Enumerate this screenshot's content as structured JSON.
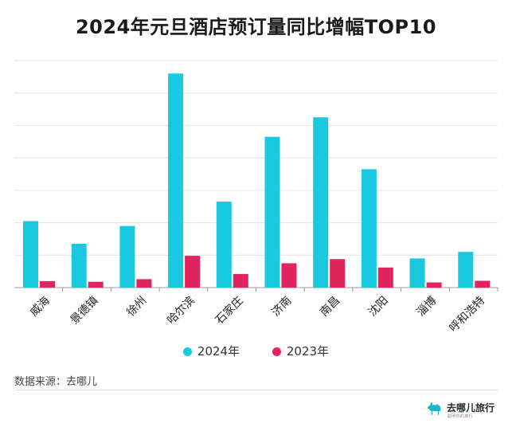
{
  "chart_data": {
    "type": "bar",
    "title": "2024年元旦酒店预订量同比增幅TOP10",
    "categories": [
      "威海",
      "景德镇",
      "徐州",
      "哈尔滨",
      "石家庄",
      "济南",
      "南昌",
      "沈阳",
      "淄博",
      "呼和浩特"
    ],
    "series": [
      {
        "name": "2024年",
        "color": "#18C9E0",
        "values": [
          20.5,
          13.5,
          19,
          66,
          26.5,
          46.5,
          52.5,
          36.5,
          9,
          11
        ]
      },
      {
        "name": "2023年",
        "color": "#E0245E",
        "values": [
          2,
          1.8,
          2.6,
          9.8,
          4.2,
          7.5,
          8.8,
          6.2,
          1.6,
          2.1
        ]
      }
    ],
    "ylim": [
      0,
      70
    ],
    "y_gridlines": true,
    "y_tick_labels": false,
    "legend_position": "bottom-center"
  },
  "source_text": "数据来源：去哪儿",
  "brand": {
    "name": "去哪儿旅行",
    "tagline": "聪明你的旅行",
    "icon": "camel-icon",
    "color": "#1BB5C8"
  }
}
